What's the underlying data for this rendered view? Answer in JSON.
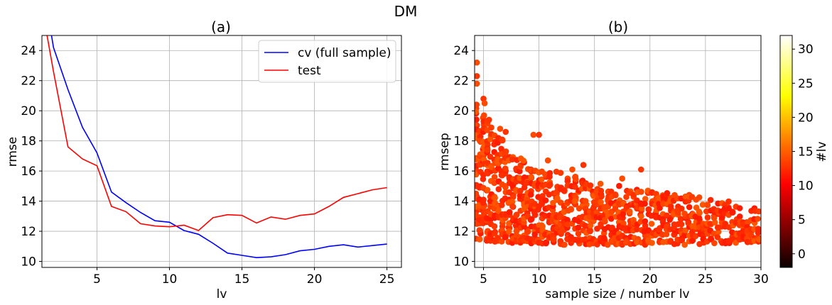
{
  "figure_title": "DM",
  "chart_data": [
    {
      "type": "line",
      "title": "(a)",
      "xlabel": "lv",
      "ylabel": "rmse",
      "xlim": [
        1.2,
        26
      ],
      "ylim": [
        9.6,
        25
      ],
      "xticks": [
        5,
        10,
        15,
        20,
        25
      ],
      "yticks": [
        10,
        12,
        14,
        16,
        18,
        20,
        22,
        24
      ],
      "grid": true,
      "legend": "top-right",
      "series": [
        {
          "name": "cv (full sample)",
          "color": "#0000ff",
          "x": [
            1,
            2,
            3,
            4,
            5,
            6,
            7,
            8,
            9,
            10,
            11,
            12,
            13,
            14,
            15,
            16,
            17,
            18,
            19,
            20,
            21,
            22,
            23,
            24,
            25
          ],
          "y": [
            30.0,
            24.2,
            21.4,
            18.9,
            17.2,
            14.6,
            13.9,
            13.25,
            12.7,
            12.6,
            12.05,
            11.8,
            11.2,
            10.55,
            10.4,
            10.25,
            10.3,
            10.45,
            10.7,
            10.8,
            11.0,
            11.1,
            10.95,
            11.05,
            11.15
          ]
        },
        {
          "name": "test",
          "color": "#ff0000",
          "x": [
            1,
            2,
            3,
            4,
            5,
            6,
            7,
            8,
            9,
            10,
            11,
            12,
            13,
            14,
            15,
            16,
            17,
            18,
            19,
            20,
            21,
            22,
            23,
            24,
            25
          ],
          "y": [
            28.0,
            22.6,
            17.6,
            16.8,
            16.35,
            13.65,
            13.3,
            12.5,
            12.35,
            12.3,
            12.4,
            12.05,
            12.9,
            13.1,
            13.05,
            12.55,
            12.95,
            12.8,
            13.05,
            13.15,
            13.65,
            14.25,
            14.5,
            14.75,
            14.9
          ]
        }
      ]
    },
    {
      "type": "scatter",
      "title": "(b)",
      "xlabel": "sample size / number lv",
      "ylabel": "rmsep",
      "xlim": [
        4.2,
        30
      ],
      "ylim": [
        9.6,
        25
      ],
      "xticks": [
        5,
        10,
        15,
        20,
        25,
        30
      ],
      "yticks": [
        10,
        12,
        14,
        16,
        18,
        20,
        22,
        24
      ],
      "grid": true,
      "colorbar": {
        "label": "#lv",
        "range": [
          -2,
          32
        ],
        "ticks": [
          0,
          5,
          10,
          15,
          20,
          25,
          30
        ],
        "colormap": "hot"
      },
      "marker_color": "#ff3a00",
      "envelope": {
        "x": [
          4.3,
          5,
          6,
          7,
          8,
          9,
          10,
          12,
          14,
          16,
          18,
          20,
          22,
          24,
          26,
          28,
          30
        ],
        "ymax": [
          20.5,
          19.8,
          18.7,
          17.8,
          17.2,
          16.7,
          16.2,
          15.9,
          15.5,
          15.2,
          14.9,
          14.7,
          14.6,
          14.4,
          14.1,
          13.9,
          13.6
        ],
        "ymin": [
          11.5,
          11.4,
          11.3,
          11.3,
          11.2,
          11.2,
          11.2,
          11.1,
          11.1,
          11.1,
          11.1,
          11.1,
          11.1,
          11.1,
          11.2,
          11.2,
          11.3
        ]
      },
      "outliers": {
        "x": [
          4.4,
          4.4,
          4.4,
          5.0,
          5.1,
          5.5,
          6.5,
          7.0,
          9.5,
          10.0,
          10.8,
          19.2,
          13.0,
          14.0,
          17.5
        ],
        "y": [
          23.2,
          22.3,
          21.8,
          20.8,
          20.5,
          19.4,
          18.8,
          18.6,
          18.4,
          18.4,
          16.7,
          16.1,
          16.1,
          16.4,
          15.5
        ]
      }
    }
  ]
}
